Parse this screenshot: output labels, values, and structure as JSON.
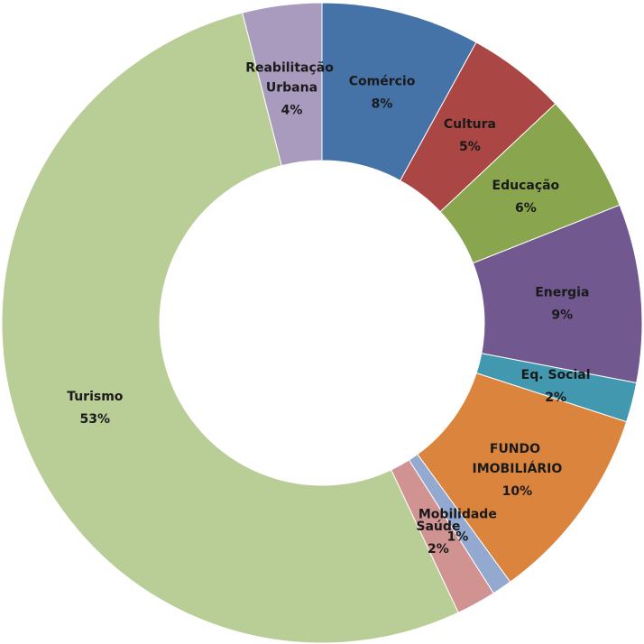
{
  "chart_data": {
    "type": "donut",
    "categories": [
      "Comércio",
      "Cultura",
      "Educação",
      "Energia",
      "Eq. Social",
      "FUNDO IMOBILIÁRIO",
      "Mobilidade",
      "Saúde",
      "Turismo",
      "Reabilitação Urbana"
    ],
    "values": [
      8,
      5,
      6,
      9,
      2,
      10,
      1,
      2,
      53,
      4
    ],
    "value_labels": [
      "8%",
      "5%",
      "6%",
      "9%",
      "2%",
      "10%",
      "1%",
      "2%",
      "53%",
      "4%"
    ],
    "colors": [
      "#4572a7",
      "#aa4643",
      "#89a54e",
      "#71588f",
      "#4198af",
      "#db843d",
      "#93a9cf",
      "#d19392",
      "#b9cd96",
      "#a99bbd"
    ]
  }
}
